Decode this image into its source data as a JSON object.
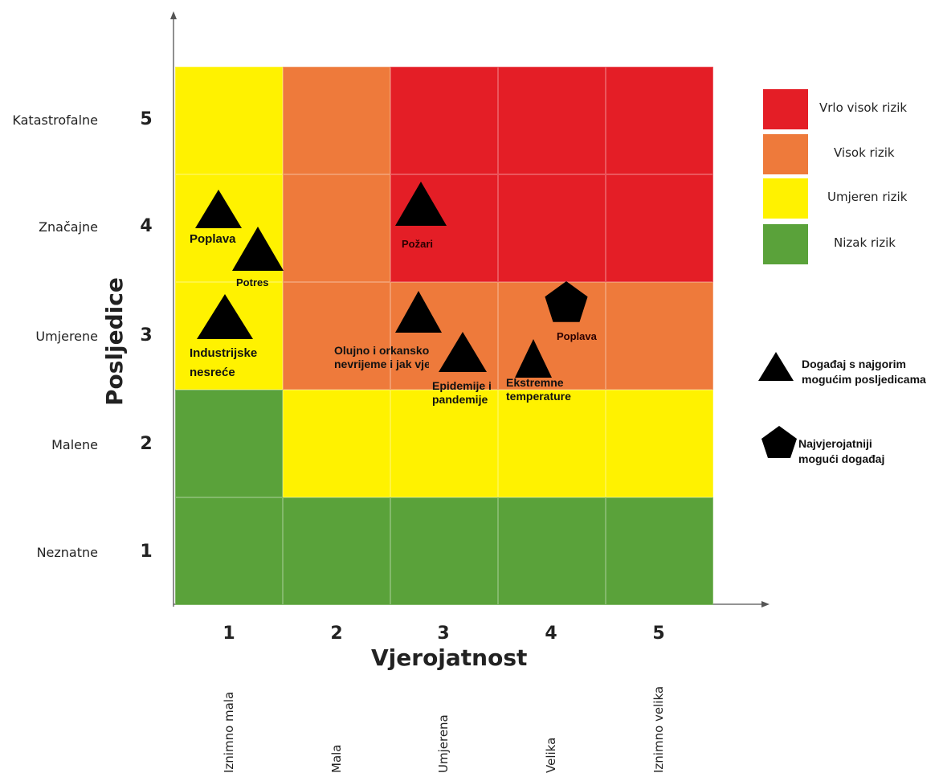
{
  "colors": {
    "very_high": "#e41e26",
    "high": "#ee7a3b",
    "moderate": "#fff200",
    "low": "#5aa23a",
    "symbol": "#000000"
  },
  "y_axis": {
    "title": "Posljedice",
    "levels": [
      {
        "value": 5,
        "label": "Katastrofalne"
      },
      {
        "value": 4,
        "label": "Značajne"
      },
      {
        "value": 3,
        "label": "Umjerene"
      },
      {
        "value": 2,
        "label": "Malene"
      },
      {
        "value": 1,
        "label": "Neznatne"
      }
    ]
  },
  "x_axis": {
    "title": "Vjerojatnost",
    "levels": [
      {
        "value": 1,
        "label": "Iznimno mala"
      },
      {
        "value": 2,
        "label": "Mala"
      },
      {
        "value": 3,
        "label": "Umjerena"
      },
      {
        "value": 4,
        "label": "Velika"
      },
      {
        "value": 5,
        "label": "Iznimno velika"
      }
    ]
  },
  "matrix": [
    [
      "moderate",
      "high",
      "very_high",
      "very_high",
      "very_high"
    ],
    [
      "moderate",
      "high",
      "very_high",
      "very_high",
      "very_high"
    ],
    [
      "moderate",
      "high",
      "high",
      "high",
      "high"
    ],
    [
      "low",
      "moderate",
      "moderate",
      "moderate",
      "moderate"
    ],
    [
      "low",
      "low",
      "low",
      "low",
      "low"
    ]
  ],
  "events": [
    {
      "shape": "triangle",
      "lines": [
        "Poplava"
      ]
    },
    {
      "shape": "triangle",
      "lines": [
        "Potres"
      ]
    },
    {
      "shape": "triangle",
      "lines": [
        "Industrijske",
        "nesreće"
      ]
    },
    {
      "shape": "triangle",
      "lines": [
        "Požari"
      ]
    },
    {
      "shape": "triangle",
      "lines": [
        "Olujno i orkansko",
        "nevrijeme i jak vjetar"
      ]
    },
    {
      "shape": "triangle",
      "lines": [
        "Epidemije i",
        "pandemije"
      ]
    },
    {
      "shape": "triangle",
      "lines": [
        "Ekstremne",
        "temperature"
      ]
    },
    {
      "shape": "pentagon",
      "lines": [
        "Poplava"
      ]
    }
  ],
  "legend": {
    "risk_levels": [
      {
        "key": "very_high",
        "label": "Vrlo visok rizik"
      },
      {
        "key": "high",
        "label": "Visok rizik"
      },
      {
        "key": "moderate",
        "label": "Umjeren rizik"
      },
      {
        "key": "low",
        "label": "Nizak rizik"
      }
    ],
    "symbols": [
      {
        "shape": "triangle",
        "lines": [
          "Događaj s najgorim",
          "mogućim posljedicama"
        ]
      },
      {
        "shape": "pentagon",
        "lines": [
          "Najvjerojatniji",
          "mogući događaj"
        ]
      }
    ]
  }
}
